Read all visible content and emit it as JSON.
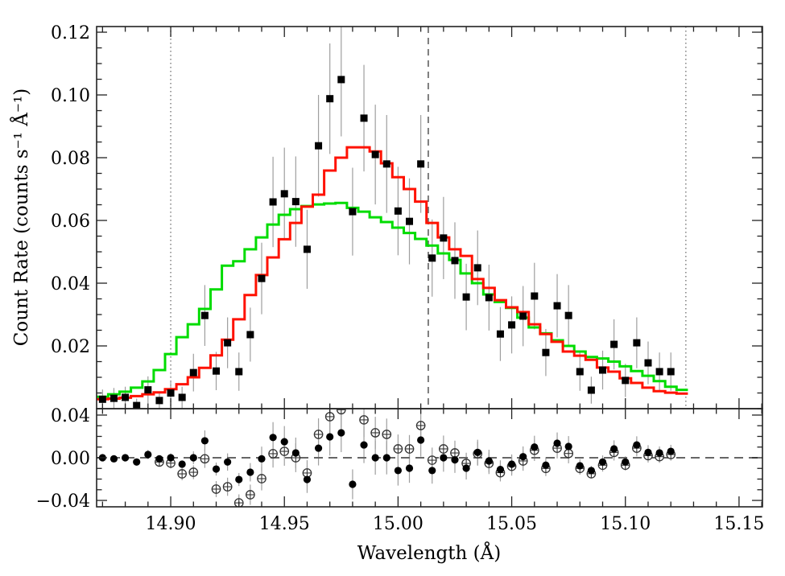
{
  "figure": {
    "background": "#ffffff",
    "frame_color": "#222222",
    "error_bar_color": "#9e9e9e"
  },
  "chart_data": {
    "type": "scatter+step-histogram",
    "title": "",
    "xlabel": "Wavelength (Å)",
    "ylabel": "Count Rate (counts s⁻¹ Å⁻¹)",
    "legend": "none",
    "grid": "off",
    "main_panel": {
      "xlim": [
        14.8674,
        15.1603
      ],
      "ylim": [
        0.0,
        0.1218
      ],
      "xticks_major": [
        14.9,
        14.95,
        15.0,
        15.05,
        15.1,
        15.15
      ],
      "xtick_labels": [
        "14.90",
        "14.95",
        "15.00",
        "15.05",
        "15.10",
        "15.15"
      ],
      "x_minor_step": 0.01,
      "yticks_major": [
        0.02,
        0.04,
        0.06,
        0.08,
        0.1,
        0.12
      ],
      "ytick_labels": [
        "0.02",
        "0.04",
        "0.06",
        "0.08",
        "0.10",
        "0.12"
      ],
      "y_minor_step": 0.005,
      "vlines_dotted": [
        14.9,
        15.1266
      ],
      "vlines_dashed": [
        15.0133
      ],
      "data_points": {
        "marker": "square",
        "color": "#000000",
        "points": [
          [
            14.87,
            0.003,
            0.0031
          ],
          [
            14.875,
            0.0033,
            0.0033
          ],
          [
            14.88,
            0.0036,
            0.0034
          ],
          [
            14.885,
            0.001,
            0.0022
          ],
          [
            14.89,
            0.006,
            0.0043
          ],
          [
            14.895,
            0.0026,
            0.0029
          ],
          [
            14.9,
            0.005,
            0.004
          ],
          [
            14.905,
            0.0036,
            0.0034
          ],
          [
            14.91,
            0.0115,
            0.006
          ],
          [
            14.915,
            0.0297,
            0.0097
          ],
          [
            14.92,
            0.012,
            0.0061
          ],
          [
            14.925,
            0.021,
            0.0081
          ],
          [
            14.93,
            0.0118,
            0.0061
          ],
          [
            14.935,
            0.0236,
            0.0086
          ],
          [
            14.94,
            0.0415,
            0.0114
          ],
          [
            14.945,
            0.0659,
            0.0144
          ],
          [
            14.95,
            0.0685,
            0.0147
          ],
          [
            14.955,
            0.066,
            0.0144
          ],
          [
            14.96,
            0.0508,
            0.0126
          ],
          [
            14.965,
            0.0838,
            0.0162
          ],
          [
            14.97,
            0.0988,
            0.0176
          ],
          [
            14.975,
            0.1049,
            0.0181
          ],
          [
            14.98,
            0.0628,
            0.014
          ],
          [
            14.985,
            0.0926,
            0.017
          ],
          [
            14.99,
            0.081,
            0.0159
          ],
          [
            14.995,
            0.078,
            0.0156
          ],
          [
            15.0,
            0.063,
            0.0141
          ],
          [
            15.005,
            0.0597,
            0.0137
          ],
          [
            15.01,
            0.078,
            0.0156
          ],
          [
            15.015,
            0.048,
            0.0123
          ],
          [
            15.02,
            0.0544,
            0.0131
          ],
          [
            15.025,
            0.0472,
            0.0122
          ],
          [
            15.03,
            0.0356,
            0.0106
          ],
          [
            15.035,
            0.0449,
            0.0119
          ],
          [
            15.04,
            0.0354,
            0.0105
          ],
          [
            15.045,
            0.0238,
            0.0086
          ],
          [
            15.05,
            0.0267,
            0.0091
          ],
          [
            15.055,
            0.0295,
            0.0096
          ],
          [
            15.06,
            0.0359,
            0.0106
          ],
          [
            15.065,
            0.0179,
            0.0075
          ],
          [
            15.07,
            0.0328,
            0.0101
          ],
          [
            15.075,
            0.0297,
            0.0097
          ],
          [
            15.08,
            0.0118,
            0.0061
          ],
          [
            15.085,
            0.0059,
            0.0043
          ],
          [
            15.09,
            0.0123,
            0.0062
          ],
          [
            15.095,
            0.0205,
            0.008
          ],
          [
            15.1,
            0.009,
            0.0053
          ],
          [
            15.105,
            0.021,
            0.0081
          ],
          [
            15.11,
            0.0146,
            0.0068
          ],
          [
            15.115,
            0.0118,
            0.0061
          ],
          [
            15.12,
            0.0118,
            0.0061
          ]
        ]
      },
      "model_red": {
        "color": "#ff1100",
        "x_start": 14.8675,
        "bin_width": 0.005,
        "values": [
          0.003,
          0.0032,
          0.0035,
          0.004,
          0.0046,
          0.0052,
          0.0062,
          0.0078,
          0.01,
          0.013,
          0.017,
          0.022,
          0.0285,
          0.0362,
          0.0426,
          0.0482,
          0.054,
          0.0592,
          0.0644,
          0.0682,
          0.0759,
          0.08,
          0.0833,
          0.0833,
          0.082,
          0.0782,
          0.0738,
          0.07,
          0.066,
          0.0592,
          0.0546,
          0.0508,
          0.0487,
          0.0413,
          0.0385,
          0.0346,
          0.0323,
          0.0308,
          0.0269,
          0.0238,
          0.0213,
          0.0182,
          0.0169,
          0.0156,
          0.0131,
          0.0118,
          0.0097,
          0.0082,
          0.0067,
          0.0056,
          0.0051,
          0.0048
        ]
      },
      "model_green": {
        "color": "#00dc00",
        "x_start": 14.8675,
        "bin_width": 0.005,
        "values": [
          0.0038,
          0.0046,
          0.0054,
          0.0067,
          0.0087,
          0.0123,
          0.0174,
          0.0228,
          0.0269,
          0.0318,
          0.038,
          0.0456,
          0.047,
          0.0508,
          0.0546,
          0.0587,
          0.0618,
          0.0636,
          0.0646,
          0.0651,
          0.0654,
          0.0656,
          0.064,
          0.0628,
          0.061,
          0.0595,
          0.0577,
          0.056,
          0.0541,
          0.052,
          0.0495,
          0.0474,
          0.0431,
          0.04,
          0.0364,
          0.034,
          0.0321,
          0.029,
          0.0259,
          0.024,
          0.0218,
          0.02,
          0.0182,
          0.0165,
          0.016,
          0.015,
          0.0135,
          0.012,
          0.0105,
          0.0088,
          0.007,
          0.006
        ]
      }
    },
    "residual_panel": {
      "ylim": [
        -0.046,
        0.046
      ],
      "yticks_major": [
        -0.04,
        0.0,
        0.04
      ],
      "ytick_labels": [
        "−0.04",
        "0.00",
        "0.04"
      ],
      "y_minor_step": 0.01,
      "hline_dashed": 0.0,
      "filled_circles": {
        "marker": "filled-circle",
        "color": "#000000",
        "points": [
          [
            14.87,
            0.0,
            0.0031
          ],
          [
            14.875,
            -0.001,
            0.0033
          ],
          [
            14.88,
            0.0,
            0.0034
          ],
          [
            14.885,
            -0.004,
            0.0022
          ],
          [
            14.89,
            0.003,
            0.0043
          ],
          [
            14.895,
            -0.001,
            0.0029
          ],
          [
            14.9,
            0.0,
            0.004
          ],
          [
            14.905,
            -0.006,
            0.0034
          ],
          [
            14.91,
            0.0,
            0.006
          ],
          [
            14.915,
            0.0159,
            0.0097
          ],
          [
            14.92,
            -0.0106,
            0.0061
          ],
          [
            14.925,
            -0.004,
            0.0081
          ],
          [
            14.93,
            -0.0204,
            0.0061
          ],
          [
            14.935,
            -0.0136,
            0.0086
          ],
          [
            14.94,
            -0.001,
            0.0114
          ],
          [
            14.945,
            0.019,
            0.0144
          ],
          [
            14.95,
            0.015,
            0.0147
          ],
          [
            14.955,
            0.0045,
            0.0144
          ],
          [
            14.96,
            -0.0204,
            0.0126
          ],
          [
            14.965,
            0.009,
            0.0162
          ],
          [
            14.97,
            0.0196,
            0.0176
          ],
          [
            14.975,
            0.0234,
            0.0181
          ],
          [
            14.98,
            -0.0249,
            0.014
          ],
          [
            14.985,
            0.012,
            0.017
          ],
          [
            14.99,
            0.0,
            0.0159
          ],
          [
            14.995,
            0.0,
            0.0156
          ],
          [
            15.0,
            -0.012,
            0.0141
          ],
          [
            15.005,
            -0.0098,
            0.0137
          ],
          [
            15.01,
            0.0166,
            0.0156
          ],
          [
            15.015,
            -0.012,
            0.0123
          ],
          [
            15.02,
            0.0,
            0.0131
          ],
          [
            15.025,
            -0.002,
            0.0122
          ],
          [
            15.03,
            -0.0098,
            0.0106
          ],
          [
            15.035,
            0.005,
            0.0119
          ],
          [
            15.04,
            -0.003,
            0.0105
          ],
          [
            15.045,
            -0.011,
            0.0086
          ],
          [
            15.05,
            -0.006,
            0.0091
          ],
          [
            15.055,
            0.001,
            0.0096
          ],
          [
            15.06,
            0.01,
            0.0106
          ],
          [
            15.065,
            -0.007,
            0.0075
          ],
          [
            15.07,
            0.0136,
            0.0101
          ],
          [
            15.075,
            0.0106,
            0.0097
          ],
          [
            15.08,
            -0.0075,
            0.0061
          ],
          [
            15.085,
            -0.012,
            0.0043
          ],
          [
            15.09,
            -0.004,
            0.0062
          ],
          [
            15.095,
            0.0083,
            0.008
          ],
          [
            15.1,
            -0.004,
            0.0053
          ],
          [
            15.105,
            0.012,
            0.0081
          ],
          [
            15.11,
            0.005,
            0.0068
          ],
          [
            15.115,
            0.0045,
            0.0061
          ],
          [
            15.12,
            0.006,
            0.0061
          ]
        ]
      },
      "open_circles": {
        "marker": "circled-plus",
        "color": "#333333",
        "points": [
          [
            14.895,
            -0.004,
            0.0045
          ],
          [
            14.9,
            -0.005,
            0.005
          ],
          [
            14.905,
            -0.0151,
            0.006
          ],
          [
            14.91,
            -0.0136,
            0.0065
          ],
          [
            14.915,
            -0.001,
            0.0085
          ],
          [
            14.92,
            -0.0294,
            0.0075
          ],
          [
            14.925,
            -0.0272,
            0.0085
          ],
          [
            14.93,
            -0.0423,
            0.008
          ],
          [
            14.935,
            -0.0347,
            0.0095
          ],
          [
            14.94,
            -0.0196,
            0.011
          ],
          [
            14.945,
            0.0038,
            0.013
          ],
          [
            14.95,
            0.006,
            0.0135
          ],
          [
            14.955,
            0.0,
            0.0135
          ],
          [
            14.96,
            -0.0143,
            0.012
          ],
          [
            14.965,
            0.0219,
            0.015
          ],
          [
            14.97,
            0.0385,
            0.0165
          ],
          [
            14.975,
            0.045,
            0.017
          ],
          [
            14.985,
            0.0355,
            0.016
          ],
          [
            14.99,
            0.0234,
            0.015
          ],
          [
            14.995,
            0.0219,
            0.0148
          ],
          [
            15.0,
            0.0083,
            0.0135
          ],
          [
            15.005,
            0.0083,
            0.013
          ],
          [
            15.01,
            0.0302,
            0.0148
          ],
          [
            15.015,
            -0.0023,
            0.0118
          ],
          [
            15.02,
            0.0083,
            0.0125
          ],
          [
            15.025,
            0.0045,
            0.0115
          ],
          [
            15.03,
            -0.0053,
            0.01
          ],
          [
            15.035,
            0.0038,
            0.0112
          ],
          [
            15.04,
            -0.0053,
            0.01
          ],
          [
            15.045,
            -0.014,
            0.0082
          ],
          [
            15.05,
            -0.008,
            0.0088
          ],
          [
            15.055,
            -0.003,
            0.0092
          ],
          [
            15.06,
            0.007,
            0.01
          ],
          [
            15.065,
            -0.01,
            0.0072
          ],
          [
            15.07,
            0.009,
            0.0096
          ],
          [
            15.075,
            0.004,
            0.0092
          ],
          [
            15.08,
            -0.01,
            0.0058
          ],
          [
            15.085,
            -0.015,
            0.0042
          ],
          [
            15.09,
            -0.007,
            0.006
          ],
          [
            15.095,
            0.005,
            0.0076
          ],
          [
            15.1,
            -0.007,
            0.005
          ],
          [
            15.105,
            0.009,
            0.0077
          ],
          [
            15.11,
            0.002,
            0.0065
          ],
          [
            15.115,
            0.001,
            0.0058
          ],
          [
            15.12,
            0.003,
            0.0058
          ]
        ]
      }
    }
  }
}
